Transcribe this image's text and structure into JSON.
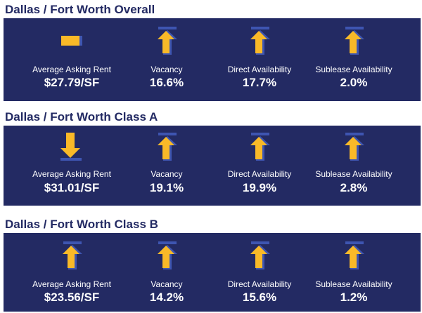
{
  "colors": {
    "navy": "#232a63",
    "yellow": "#f9b928",
    "blue": "#3e55b1"
  },
  "sections": [
    {
      "title": "Dallas / Fort Worth Overall",
      "metrics": [
        {
          "label": "Average Asking Rent",
          "value": "$27.79/SF",
          "trend": "neutral",
          "icon": "flat-bar-icon"
        },
        {
          "label": "Vacancy",
          "value": "16.6%",
          "trend": "up",
          "icon": "up-arrow-icon"
        },
        {
          "label": "Direct Availability",
          "value": "17.7%",
          "trend": "up",
          "icon": "up-arrow-icon"
        },
        {
          "label": "Sublease Availability",
          "value": "2.0%",
          "trend": "up",
          "icon": "up-arrow-icon"
        }
      ]
    },
    {
      "title": "Dallas / Fort Worth Class A",
      "metrics": [
        {
          "label": "Average Asking Rent",
          "value": "$31.01/SF",
          "trend": "down",
          "icon": "down-arrow-icon"
        },
        {
          "label": "Vacancy",
          "value": "19.1%",
          "trend": "up",
          "icon": "up-arrow-icon"
        },
        {
          "label": "Direct Availability",
          "value": "19.9%",
          "trend": "up",
          "icon": "up-arrow-icon"
        },
        {
          "label": "Sublease Availability",
          "value": "2.8%",
          "trend": "up",
          "icon": "up-arrow-icon"
        }
      ]
    },
    {
      "title": "Dallas / Fort Worth Class B",
      "metrics": [
        {
          "label": "Average Asking Rent",
          "value": "$23.56/SF",
          "trend": "up",
          "icon": "up-arrow-icon"
        },
        {
          "label": "Vacancy",
          "value": "14.2%",
          "trend": "up",
          "icon": "up-arrow-icon"
        },
        {
          "label": "Direct Availability",
          "value": "15.6%",
          "trend": "up",
          "icon": "up-arrow-icon"
        },
        {
          "label": "Sublease Availability",
          "value": "1.2%",
          "trend": "up",
          "icon": "up-arrow-icon"
        }
      ]
    }
  ]
}
